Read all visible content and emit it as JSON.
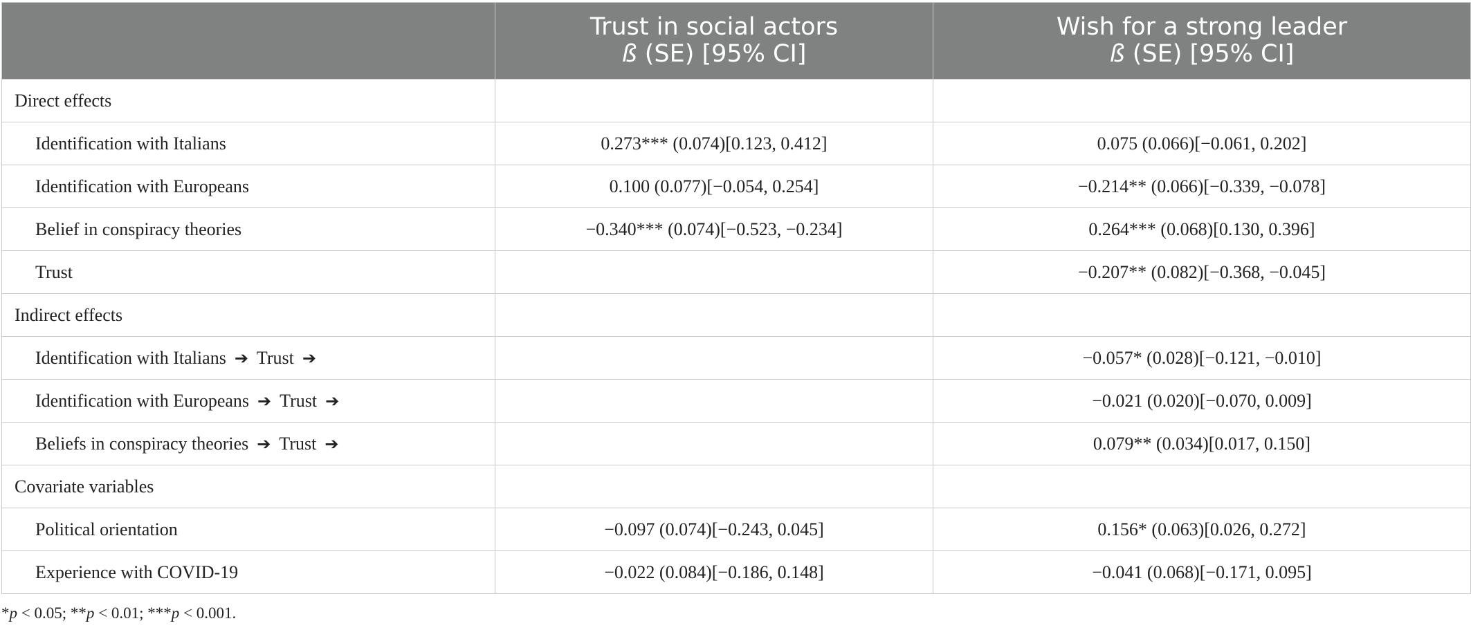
{
  "header": {
    "col0": "",
    "col1_title": "Trust in social actors",
    "col1_stat": "ß",
    "col1_rest": " (SE) [95% CI]",
    "col2_title": "Wish for a strong leader",
    "col2_stat": "ß",
    "col2_rest": " (SE) [95% CI]"
  },
  "rows": [
    {
      "label": "Direct effects",
      "indent": false,
      "trust": "",
      "leader": ""
    },
    {
      "label": "Identification with Italians",
      "indent": true,
      "trust": "0.273*** (0.074)[0.123, 0.412]",
      "leader": "0.075 (0.066)[−0.061, 0.202]"
    },
    {
      "label": "Identification with Europeans",
      "indent": true,
      "trust": "0.100 (0.077)[−0.054, 0.254]",
      "leader": "−0.214** (0.066)[−0.339, −0.078]"
    },
    {
      "label": "Belief in conspiracy theories",
      "indent": true,
      "trust": "−0.340*** (0.074)[−0.523, −0.234]",
      "leader": "0.264*** (0.068)[0.130, 0.396]"
    },
    {
      "label": "Trust",
      "indent": true,
      "trust": "",
      "leader": "−0.207** (0.082)[−0.368, −0.045]"
    },
    {
      "label": "Indirect effects",
      "indent": false,
      "trust": "",
      "leader": ""
    },
    {
      "label": "Identification with Italians",
      "path": "Trust",
      "indent": true,
      "trust": "",
      "leader": "−0.057* (0.028)[−0.121, −0.010]"
    },
    {
      "label": "Identification with Europeans",
      "path": "Trust",
      "indent": true,
      "trust": "",
      "leader": "−0.021 (0.020)[−0.070, 0.009]"
    },
    {
      "label": "Beliefs in conspiracy theories",
      "path": "Trust",
      "indent": true,
      "trust": "",
      "leader": "0.079** (0.034)[0.017, 0.150]"
    },
    {
      "label": "Covariate variables",
      "indent": false,
      "trust": "",
      "leader": ""
    },
    {
      "label": "Political orientation",
      "indent": true,
      "trust": "−0.097 (0.074)[−0.243, 0.045]",
      "leader": "0.156* (0.063)[0.026, 0.272]"
    },
    {
      "label": "Experience with COVID-19",
      "indent": true,
      "trust": "−0.022 (0.084)[−0.186, 0.148]",
      "leader": "−0.041 (0.068)[−0.171, 0.095]"
    }
  ],
  "footnote": [
    {
      "prefix": "*",
      "p": "p",
      "rest": " < 0.05; "
    },
    {
      "prefix": "**",
      "p": "p",
      "rest": " < 0.01; "
    },
    {
      "prefix": "***",
      "p": "p",
      "rest": " < 0.001."
    }
  ],
  "arrow_symbol": "➔",
  "colors": {
    "header_bg": "#7f8280",
    "header_text": "#ffffff",
    "grid": "#c9c9c9",
    "body_text": "#222222"
  }
}
